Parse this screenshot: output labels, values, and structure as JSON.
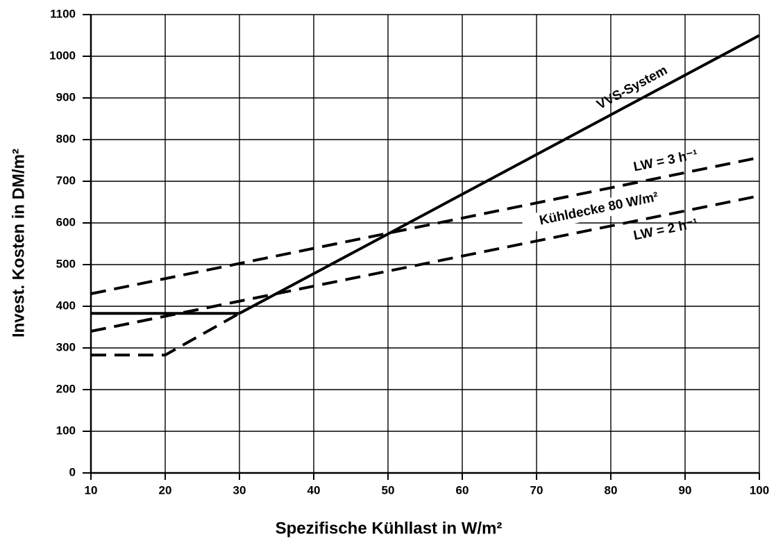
{
  "chart_data": {
    "type": "line",
    "xlabel": "Spezifische Kühllast in W/m²",
    "ylabel": "Invest. Kosten in DM/m²",
    "xlim": [
      10,
      100
    ],
    "xticks": [
      10,
      20,
      30,
      40,
      50,
      60,
      70,
      80,
      90,
      100
    ],
    "ylim": [
      0,
      1100
    ],
    "yticks": [
      0,
      100,
      200,
      300,
      400,
      500,
      600,
      700,
      800,
      900,
      1000,
      1100
    ],
    "grid": true,
    "annotation": "Kühldecke 80 W/m²",
    "series": [
      {
        "name": "VVS-System",
        "color": "#000000",
        "line_style": "solid",
        "x": [
          10,
          30,
          100
        ],
        "values": [
          383,
          383,
          1050
        ]
      },
      {
        "name": "LW = 3 h⁻¹",
        "color": "#000000",
        "line_style": "dashed",
        "x": [
          10,
          100
        ],
        "values": [
          430,
          757
        ]
      },
      {
        "name": "LW = 2 h⁻¹",
        "color": "#000000",
        "line_style": "dashed",
        "x": [
          10,
          100
        ],
        "values": [
          340,
          665
        ]
      },
      {
        "color": "#000000",
        "line_style": "dashed",
        "x": [
          10,
          20,
          30
        ],
        "values": [
          283,
          283,
          383
        ]
      }
    ]
  }
}
